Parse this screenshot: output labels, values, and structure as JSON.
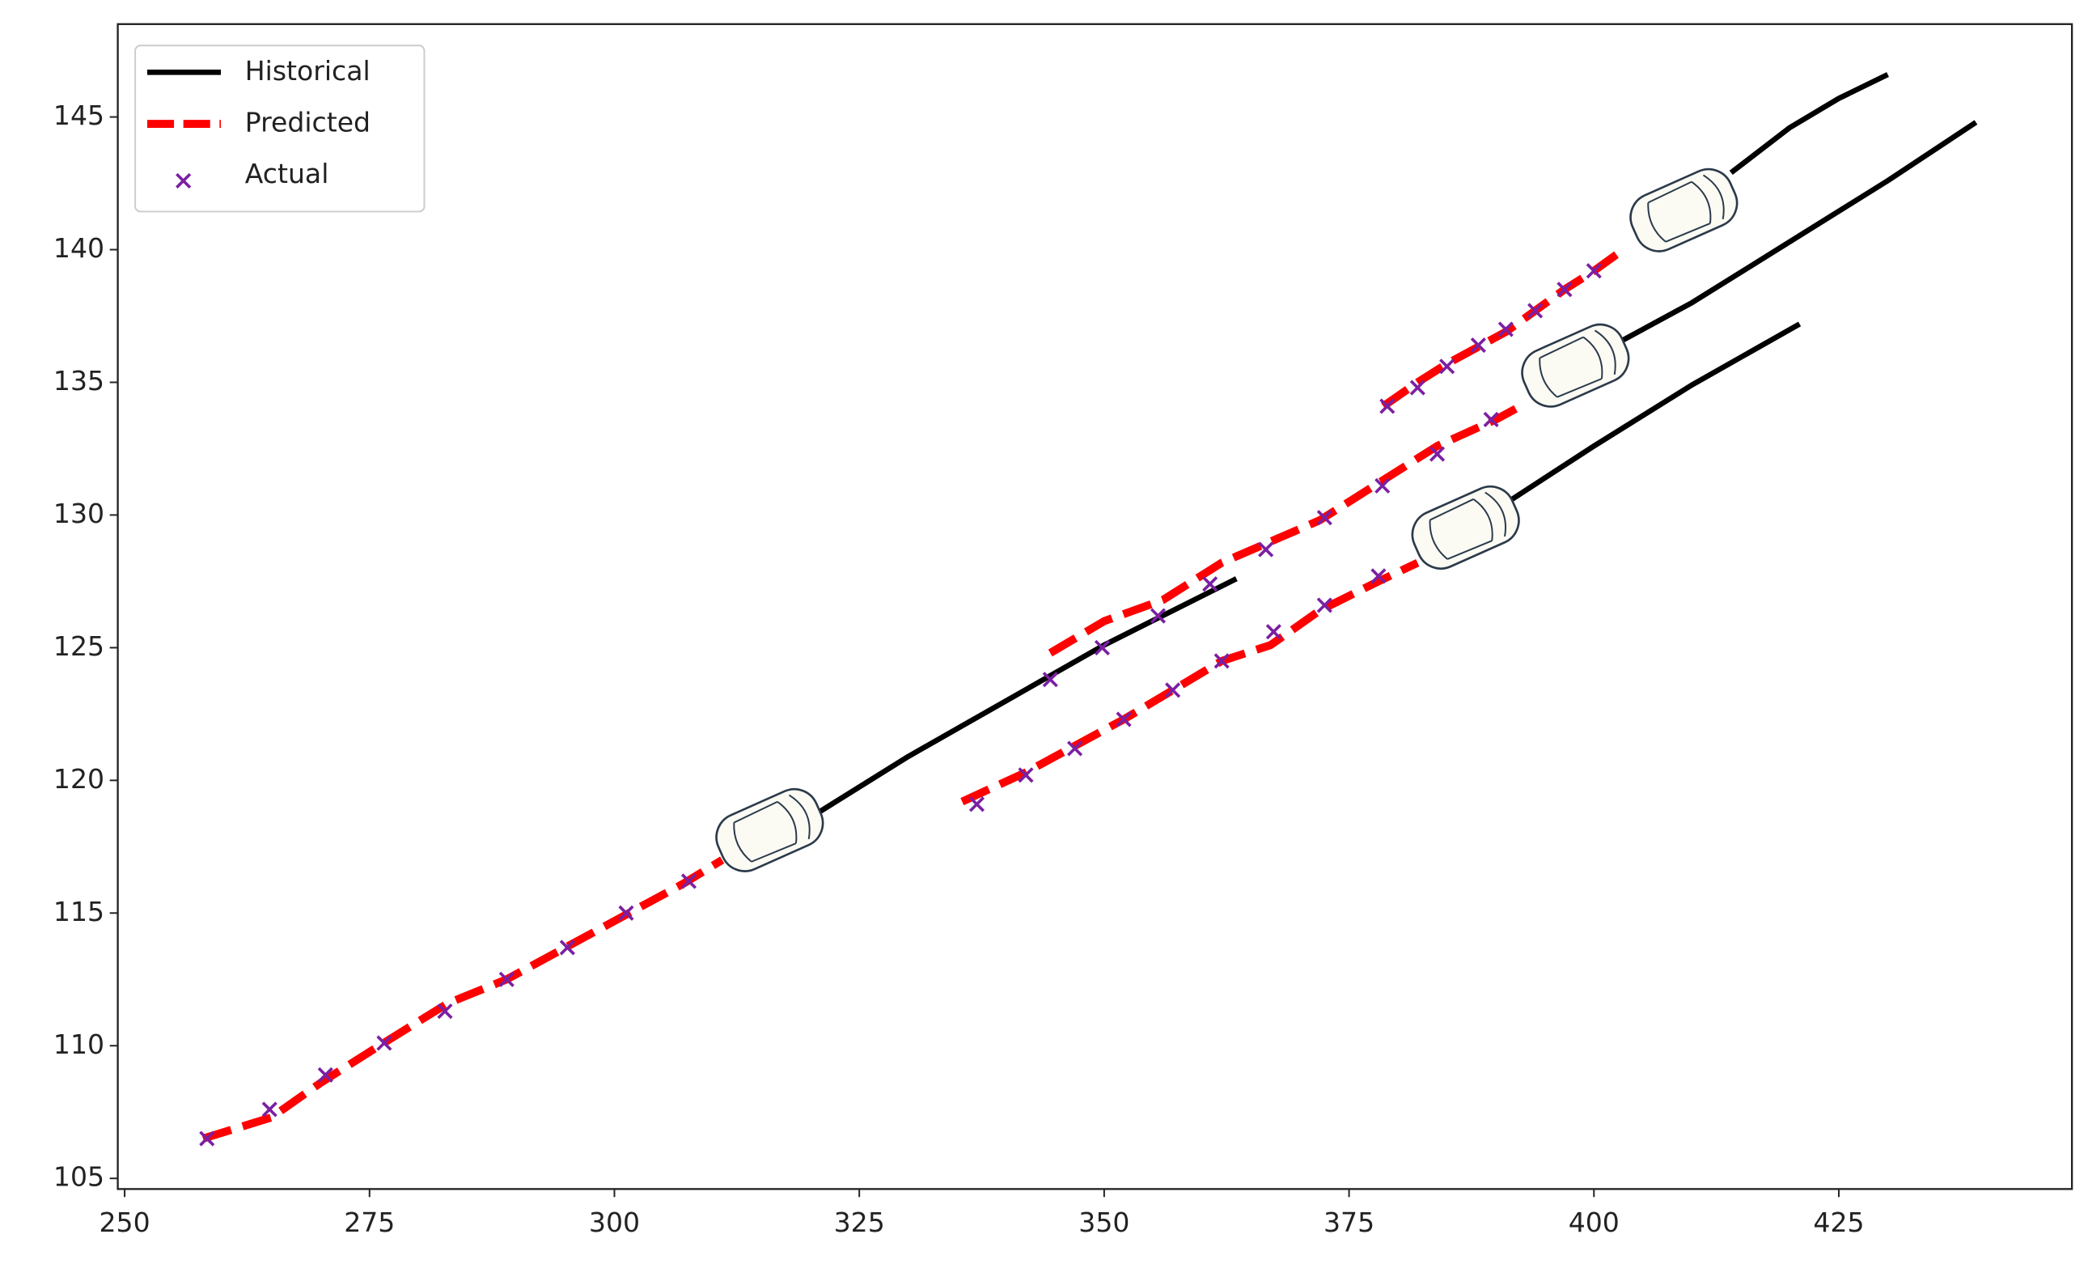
{
  "chart_data": {
    "type": "line",
    "xlim": [
      249.3,
      448.8
    ],
    "ylim": [
      104.6,
      148.5
    ],
    "xticks": [
      250,
      275,
      300,
      325,
      350,
      375,
      400,
      425
    ],
    "yticks": [
      105,
      110,
      115,
      120,
      125,
      130,
      135,
      140,
      145
    ],
    "legend": "upper left",
    "series": [
      {
        "name": "Historical",
        "color": "#000000",
        "linestyle": "solid",
        "x": [
          320,
          330,
          340,
          350,
          363.5,
          null,
          390,
          400,
          410,
          421,
          null,
          401,
          410,
          420,
          430,
          439,
          null,
          414,
          420,
          425,
          430
        ],
        "values": [
          118.6,
          120.9,
          123,
          125.1,
          127.6,
          null,
          130.2,
          132.6,
          134.9,
          137.2,
          null,
          136.2,
          138,
          140.3,
          142.6,
          144.8,
          null,
          142.9,
          144.6,
          145.7,
          146.6
        ]
      },
      {
        "name": "Predicted",
        "color": "#ff0000",
        "linestyle": "dashed",
        "x": [
          258,
          265,
          270,
          276,
          283,
          289,
          295,
          301,
          307,
          311,
          null,
          335.5,
          342,
          347,
          352,
          357,
          362,
          367,
          372,
          378,
          382,
          null,
          344.5,
          350,
          356,
          362,
          367,
          372,
          378,
          384,
          390,
          393,
          null,
          378.5,
          382,
          385,
          388,
          391,
          394,
          397,
          400,
          403
        ],
        "values": [
          106.5,
          107.3,
          108.6,
          110,
          111.6,
          112.5,
          113.7,
          114.9,
          116.1,
          117,
          null,
          119.2,
          120.3,
          121.3,
          122.3,
          123.4,
          124.5,
          125.1,
          126.4,
          127.5,
          128.2,
          null,
          124.8,
          126,
          126.8,
          128.2,
          129,
          129.8,
          131.2,
          132.6,
          133.6,
          134.2,
          null,
          134.1,
          135,
          135.7,
          136.3,
          136.9,
          137.7,
          138.5,
          139.2,
          140
        ]
      },
      {
        "name": "Actual",
        "color": "#7b1fa2",
        "marker": "x",
        "x": [
          258.4,
          264.8,
          270.5,
          276.5,
          282.7,
          289,
          295.2,
          301.2,
          307.6,
          337,
          342,
          347,
          352,
          357,
          362,
          367.3,
          372.5,
          378,
          344.5,
          349.8,
          355.5,
          360.8,
          366.5,
          372.5,
          378.4,
          384,
          389.5,
          378.9,
          382,
          385,
          388.2,
          391,
          394,
          397,
          400
        ],
        "values": [
          106.5,
          107.6,
          108.9,
          110.1,
          111.3,
          112.5,
          113.7,
          115,
          116.2,
          119.1,
          120.2,
          121.2,
          122.3,
          123.4,
          124.5,
          125.6,
          126.6,
          127.7,
          123.8,
          125,
          126.2,
          127.4,
          128.7,
          129.9,
          131.1,
          132.3,
          133.6,
          134.1,
          134.8,
          135.6,
          136.4,
          137,
          137.7,
          138.5,
          139.2
        ]
      }
    ]
  }
}
